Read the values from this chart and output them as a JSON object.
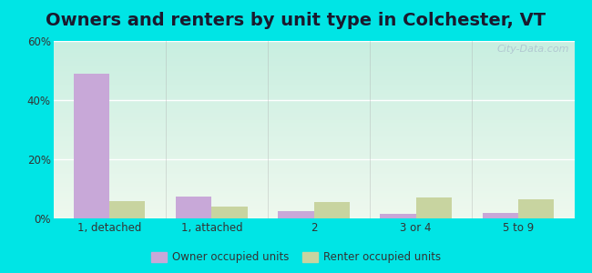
{
  "title": "Owners and renters by unit type in Colchester, VT",
  "categories": [
    "1, detached",
    "1, attached",
    "2",
    "3 or 4",
    "5 to 9"
  ],
  "owner_values": [
    49,
    7.5,
    2.5,
    1.5,
    1.8
  ],
  "renter_values": [
    6,
    4,
    5.5,
    7,
    6.5
  ],
  "owner_color": "#c8a8d8",
  "renter_color": "#c8d4a0",
  "ylim": [
    0,
    60
  ],
  "yticks": [
    0,
    20,
    40,
    60
  ],
  "ytick_labels": [
    "0%",
    "20%",
    "40%",
    "60%"
  ],
  "bar_width": 0.35,
  "bg_top": "#c8eee0",
  "bg_bottom": "#eef8ee",
  "outer_bg": "#00e5e5",
  "title_fontsize": 14,
  "legend_labels": [
    "Owner occupied units",
    "Renter occupied units"
  ],
  "watermark": "City-Data.com"
}
